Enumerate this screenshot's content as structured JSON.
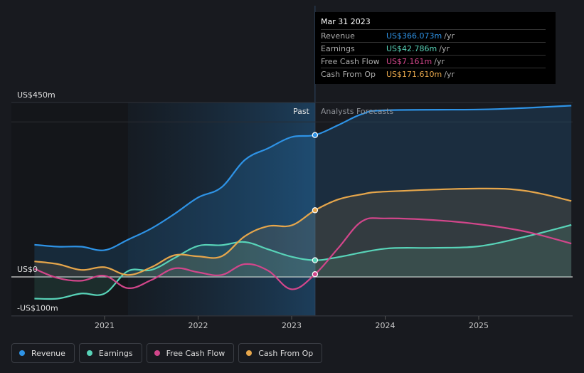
{
  "chart_data": {
    "type": "line",
    "y_axis_labels": [
      {
        "label": "US$450m",
        "value": 450
      },
      {
        "label": "US$0",
        "value": 0
      },
      {
        "label": "-US$100m",
        "value": -100
      }
    ],
    "x_ticks": [
      {
        "label": "2021",
        "year": 2021.0
      },
      {
        "label": "2022",
        "year": 2022.0
      },
      {
        "label": "2023",
        "year": 2023.0
      },
      {
        "label": "2024",
        "year": 2024.0
      },
      {
        "label": "2025",
        "year": 2025.0
      }
    ],
    "ylim": [
      -100,
      450
    ],
    "xlim": [
      2020.1,
      2025.99
    ],
    "shade_start": 2021.25,
    "past_end": 2023.25,
    "past_label": "Past",
    "forecast_label": "Analysts Forecasts",
    "series": [
      {
        "name": "Revenue",
        "key": "revenue",
        "color": "#2e93e6",
        "fill": true,
        "points": [
          [
            2020.25,
            83
          ],
          [
            2020.5,
            78
          ],
          [
            2020.75,
            78
          ],
          [
            2021.0,
            69
          ],
          [
            2021.25,
            96
          ],
          [
            2021.5,
            125
          ],
          [
            2021.75,
            163
          ],
          [
            2022.0,
            205
          ],
          [
            2022.25,
            231
          ],
          [
            2022.5,
            302
          ],
          [
            2022.75,
            332
          ],
          [
            2023.0,
            361
          ],
          [
            2023.25,
            366
          ],
          [
            2023.5,
            392
          ],
          [
            2023.75,
            420
          ],
          [
            2024.0,
            430
          ],
          [
            2025.0,
            432
          ],
          [
            2025.5,
            436
          ],
          [
            2025.99,
            442
          ]
        ],
        "marker_at": 2023.25
      },
      {
        "name": "Earnings",
        "key": "earnings",
        "color": "#58d3b8",
        "fill": true,
        "points": [
          [
            2020.25,
            -56
          ],
          [
            2020.5,
            -56
          ],
          [
            2020.75,
            -43
          ],
          [
            2021.0,
            -43
          ],
          [
            2021.25,
            15
          ],
          [
            2021.5,
            18
          ],
          [
            2021.75,
            49
          ],
          [
            2022.0,
            80
          ],
          [
            2022.25,
            82
          ],
          [
            2022.5,
            90
          ],
          [
            2022.75,
            71
          ],
          [
            2023.0,
            52
          ],
          [
            2023.25,
            43
          ],
          [
            2023.5,
            51
          ],
          [
            2024.0,
            73
          ],
          [
            2024.5,
            75
          ],
          [
            2025.0,
            79
          ],
          [
            2025.5,
            104
          ],
          [
            2025.99,
            134
          ]
        ],
        "marker_at": 2023.25
      },
      {
        "name": "Free Cash Flow",
        "key": "fcf",
        "color": "#d2468b",
        "fill": false,
        "points": [
          [
            2020.25,
            21
          ],
          [
            2020.5,
            -3
          ],
          [
            2020.75,
            -10
          ],
          [
            2021.0,
            3
          ],
          [
            2021.25,
            -29
          ],
          [
            2021.5,
            -8
          ],
          [
            2021.75,
            22
          ],
          [
            2022.0,
            12
          ],
          [
            2022.25,
            5
          ],
          [
            2022.5,
            33
          ],
          [
            2022.75,
            16
          ],
          [
            2023.0,
            -32
          ],
          [
            2023.25,
            7
          ],
          [
            2023.5,
            75
          ],
          [
            2023.75,
            143
          ],
          [
            2024.0,
            151
          ],
          [
            2024.5,
            147
          ],
          [
            2025.0,
            136
          ],
          [
            2025.5,
            117
          ],
          [
            2025.99,
            86
          ]
        ],
        "marker_at": 2023.25
      },
      {
        "name": "Cash From Op",
        "key": "cfo",
        "color": "#e6a64b",
        "fill": true,
        "points": [
          [
            2020.25,
            40
          ],
          [
            2020.5,
            33
          ],
          [
            2020.75,
            18
          ],
          [
            2021.0,
            25
          ],
          [
            2021.25,
            5
          ],
          [
            2021.5,
            25
          ],
          [
            2021.75,
            56
          ],
          [
            2022.0,
            53
          ],
          [
            2022.25,
            53
          ],
          [
            2022.5,
            105
          ],
          [
            2022.75,
            131
          ],
          [
            2023.0,
            133
          ],
          [
            2023.25,
            172
          ],
          [
            2023.5,
            200
          ],
          [
            2023.75,
            213
          ],
          [
            2024.0,
            220
          ],
          [
            2025.0,
            228
          ],
          [
            2025.5,
            222
          ],
          [
            2025.99,
            196
          ]
        ],
        "marker_at": 2023.25
      }
    ]
  },
  "tooltip": {
    "date": "Mar 31 2023",
    "rows": [
      {
        "label": "Revenue",
        "value": "US$366.073m",
        "unit": "/yr",
        "color": "#2e93e6"
      },
      {
        "label": "Earnings",
        "value": "US$42.786m",
        "unit": "/yr",
        "color": "#58d3b8"
      },
      {
        "label": "Free Cash Flow",
        "value": "US$7.161m",
        "unit": "/yr",
        "color": "#d2468b"
      },
      {
        "label": "Cash From Op",
        "value": "US$171.610m",
        "unit": "/yr",
        "color": "#e6a64b"
      }
    ]
  },
  "legend": [
    {
      "label": "Revenue",
      "color": "#2e93e6"
    },
    {
      "label": "Earnings",
      "color": "#58d3b8"
    },
    {
      "label": "Free Cash Flow",
      "color": "#d2468b"
    },
    {
      "label": "Cash From Op",
      "color": "#e6a64b"
    }
  ]
}
